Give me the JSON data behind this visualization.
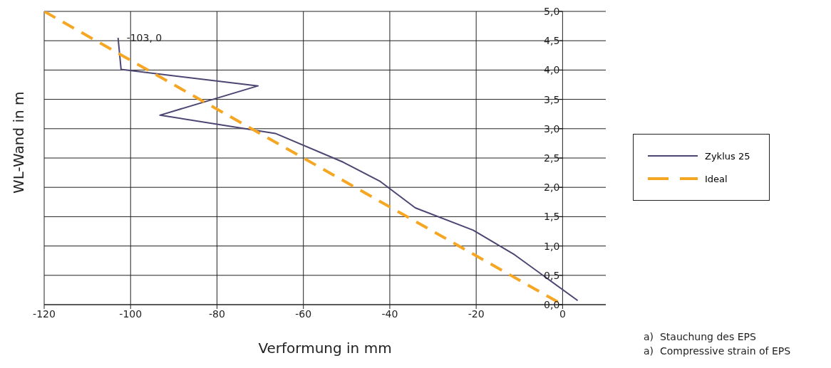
{
  "chart_data": {
    "type": "line",
    "xlabel": "Verformung in mm",
    "ylabel": "WL-Wand in m",
    "series": [
      {
        "name": "Zyklus 25",
        "color": "#4b4672",
        "line_style": "solid",
        "x": [
          -102.9,
          -102.2,
          -70.5,
          -93.2,
          -66.5,
          -50.8,
          -42.2,
          -34.1,
          -20.7,
          -11.1,
          3.5
        ],
        "values": [
          4.55,
          4.01,
          3.73,
          3.23,
          2.92,
          2.43,
          2.1,
          1.65,
          1.27,
          0.85,
          0.07
        ]
      },
      {
        "name": "Ideal",
        "color": "#f5a623",
        "line_style": "dashed",
        "x": [
          -120,
          0
        ],
        "values": [
          5,
          0
        ]
      }
    ],
    "xlim": [
      -120,
      10
    ],
    "xticks": [
      -120,
      -100,
      -80,
      -60,
      -40,
      -20,
      0
    ],
    "ylim": [
      0,
      5
    ],
    "yticks": [
      {
        "value": 0,
        "label": "0,0"
      },
      {
        "value": 0.5,
        "label": "0,5"
      },
      {
        "value": 1,
        "label": "1,0"
      },
      {
        "value": 1.5,
        "label": "1,5"
      },
      {
        "value": 2,
        "label": "2,0"
      },
      {
        "value": 2.5,
        "label": "2,5"
      },
      {
        "value": 3,
        "label": "3,0"
      },
      {
        "value": 3.5,
        "label": "3,5"
      },
      {
        "value": 4,
        "label": "4,0"
      },
      {
        "value": 4.5,
        "label": "4,5"
      },
      {
        "value": 5,
        "label": "5,0"
      }
    ],
    "grid": true,
    "legend": "right",
    "marker": "none",
    "annotations": [
      {
        "text": "-103, 0",
        "x": -102.9,
        "y": 4.55
      },
      "a)  Stauchung des EPS",
      "a)  Compressive strain of EPS"
    ]
  }
}
